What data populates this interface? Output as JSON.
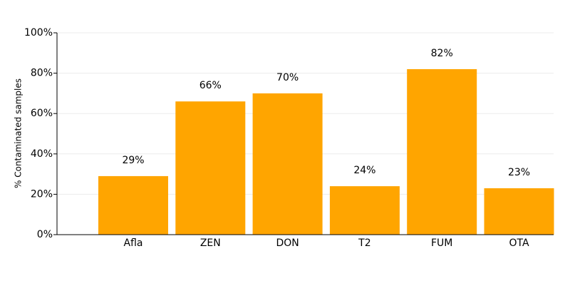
{
  "chart_data": {
    "type": "bar",
    "y_label": "% Contaminated samples",
    "categories": [
      "Afla",
      "ZEN",
      "DON",
      "T2",
      "FUM",
      "OTA"
    ],
    "values": [
      29,
      66,
      70,
      24,
      82,
      23
    ],
    "value_labels": [
      "29%",
      "66%",
      "70%",
      "24%",
      "82%",
      "23%"
    ],
    "color": "#ffa500",
    "ylim": [
      0,
      100
    ],
    "yticks": [
      {
        "value": 0,
        "label": "0%"
      },
      {
        "value": 20,
        "label": "20%"
      },
      {
        "value": 40,
        "label": "40%"
      },
      {
        "value": 60,
        "label": "60%"
      },
      {
        "value": 80,
        "label": "80%"
      },
      {
        "value": 100,
        "label": "100%"
      }
    ],
    "grid": true
  }
}
